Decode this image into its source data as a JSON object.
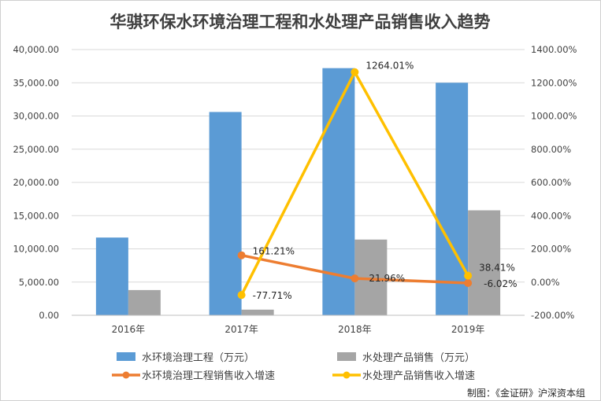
{
  "chart_data": {
    "type": "bar",
    "title": "华骐环保水环境治理工程和水处理产品销售收入趋势",
    "categories": [
      "2016年",
      "2017年",
      "2018年",
      "2019年"
    ],
    "series": [
      {
        "name": "水环境治理工程（万元）",
        "type": "bar",
        "axis": "left",
        "color": "#5b9bd5",
        "values": [
          11700,
          30600,
          37200,
          35000
        ]
      },
      {
        "name": "水处理产品销售（万元）",
        "type": "bar",
        "axis": "left",
        "color": "#a5a5a5",
        "values": [
          3800,
          850,
          11400,
          15800
        ]
      },
      {
        "name": "水环境治理工程销售收入增速",
        "type": "line",
        "axis": "right",
        "color": "#ed7d31",
        "values": [
          null,
          161.21,
          21.96,
          -6.02
        ],
        "labels": [
          "",
          "161.21%",
          "21.96%",
          "-6.02%"
        ]
      },
      {
        "name": "水处理产品销售收入增速",
        "type": "line",
        "axis": "right",
        "color": "#ffc000",
        "values": [
          null,
          -77.71,
          1264.01,
          38.41
        ],
        "labels": [
          "",
          "-77.71%",
          "1264.01%",
          "38.41%"
        ]
      }
    ],
    "left_axis": {
      "min": 0,
      "max": 40000,
      "ticks": [
        0,
        5000,
        10000,
        15000,
        20000,
        25000,
        30000,
        35000,
        40000
      ],
      "tick_labels": [
        "0.00",
        "5,000.00",
        "10,000.00",
        "15,000.00",
        "20,000.00",
        "25,000.00",
        "30,000.00",
        "35,000.00",
        "40,000.00"
      ]
    },
    "right_axis": {
      "min": -200,
      "max": 1400,
      "ticks": [
        -200,
        0,
        200,
        400,
        600,
        800,
        1000,
        1200,
        1400
      ],
      "tick_labels": [
        "-200.00%",
        "0.00%",
        "200.00%",
        "400.00%",
        "600.00%",
        "800.00%",
        "1000.00%",
        "1200.00%",
        "1400.00%"
      ]
    },
    "grid": true,
    "legend_position": "bottom"
  },
  "credit": "制图：《金证研》沪深资本组"
}
